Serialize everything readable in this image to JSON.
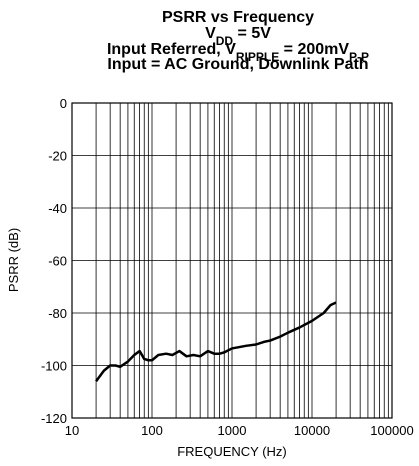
{
  "chart_data": {
    "type": "line",
    "title": [
      "PSRR vs Frequency",
      [
        "V",
        "DD",
        " = 5V"
      ],
      [
        "Input Referred, V",
        "RIPPLE",
        " = 200mV",
        "P-P"
      ],
      "Input = AC Ground, Downlink Path"
    ],
    "xlabel": "FREQUENCY (Hz)",
    "ylabel": "PSRR (dB)",
    "xscale": "log",
    "xlim": [
      10,
      100000
    ],
    "xticks": [
      10,
      100,
      1000,
      10000,
      100000
    ],
    "ylim": [
      -120,
      0
    ],
    "yticks": [
      0,
      -20,
      -40,
      -60,
      -80,
      -100,
      -120
    ],
    "grid": true,
    "minor_grid": true,
    "color": "#000000",
    "x": [
      20,
      25,
      30,
      35,
      40,
      50,
      60,
      70,
      80,
      90,
      100,
      120,
      150,
      180,
      220,
      270,
      330,
      400,
      500,
      600,
      700,
      800,
      1000,
      1500,
      2000,
      2500,
      3000,
      4000,
      5000,
      7000,
      10000,
      14000,
      17000,
      20000
    ],
    "values": [
      -106,
      -102,
      -100,
      -100,
      -100.5,
      -98.5,
      -96,
      -94.5,
      -97.5,
      -98,
      -98,
      -96,
      -95.5,
      -96,
      -94.5,
      -96.5,
      -96,
      -96.5,
      -94.5,
      -95.5,
      -95.5,
      -95,
      -93.5,
      -92.5,
      -92,
      -91,
      -90.5,
      -89,
      -87.5,
      -85.5,
      -83,
      -80,
      -77,
      -76
    ]
  }
}
